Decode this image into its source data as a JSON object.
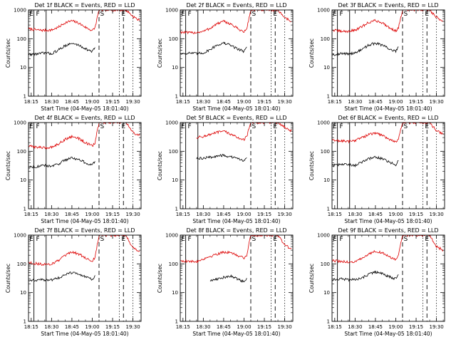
{
  "figure": {
    "xlabel": "Start Time (04-May-05 18:01:40)",
    "ylabel": "Counts/sec",
    "x_tick_labels": [
      "18:15",
      "18:30",
      "18:45",
      "19:00",
      "19:15",
      "19:30"
    ],
    "y_tick_labels": [
      "1",
      "10",
      "100",
      "1000"
    ],
    "markers": [
      "E",
      "F",
      "S",
      "E"
    ],
    "colors": {
      "events": "#000000",
      "lld": "#dd0000",
      "axes": "#000000",
      "background": "#ffffff"
    }
  },
  "chart_data": [
    {
      "type": "line",
      "title": "Det 1f BLACK = Events, RED = LLD",
      "ylim": [
        1,
        1000
      ],
      "yscale": "log",
      "ylabel": "Counts/sec",
      "xlabel": "Start Time (04-May-05 18:01:40)",
      "x": [
        "18:13",
        "18:20",
        "18:25",
        "18:30",
        "18:35",
        "18:40",
        "18:45",
        "18:50",
        "18:55",
        "19:00",
        "19:02",
        "19:05",
        "19:10",
        "19:15",
        "19:20",
        "19:25",
        "19:30",
        "19:35"
      ],
      "series": [
        {
          "name": "LLD",
          "color": "#dd0000",
          "values": [
            220,
            200,
            195,
            200,
            250,
            360,
            420,
            350,
            250,
            190,
            240,
            1000,
            1000,
            1000,
            1000,
            1000,
            600,
            420
          ]
        },
        {
          "name": "Events",
          "color": "#000000",
          "values": [
            28,
            30,
            32,
            30,
            40,
            58,
            68,
            60,
            45,
            35,
            50,
            null,
            null,
            null,
            null,
            null,
            null,
            null
          ]
        }
      ]
    },
    {
      "type": "line",
      "title": "Det 2f BLACK = Events, RED = LLD",
      "ylim": [
        1,
        1000
      ],
      "yscale": "log",
      "ylabel": "Counts/sec",
      "xlabel": "Start Time (04-May-05 18:01:40)",
      "x": [
        "18:13",
        "18:20",
        "18:25",
        "18:30",
        "18:35",
        "18:40",
        "18:45",
        "18:50",
        "18:55",
        "19:00",
        "19:02",
        "19:05",
        "19:10",
        "19:15",
        "19:20",
        "19:25",
        "19:30",
        "19:35"
      ],
      "series": [
        {
          "name": "LLD",
          "color": "#dd0000",
          "values": [
            170,
            160,
            165,
            180,
            230,
            330,
            400,
            330,
            230,
            170,
            220,
            1000,
            1000,
            1000,
            1000,
            1000,
            550,
            400
          ]
        },
        {
          "name": "Events",
          "color": "#000000",
          "values": [
            30,
            32,
            30,
            32,
            42,
            60,
            70,
            60,
            45,
            36,
            52,
            null,
            null,
            null,
            null,
            null,
            null,
            null
          ]
        }
      ]
    },
    {
      "type": "line",
      "title": "Det 3f BLACK = Events, RED = LLD",
      "ylim": [
        1,
        1000
      ],
      "yscale": "log",
      "ylabel": "Counts/sec",
      "xlabel": "Start Time (04-May-05 18:01:40)",
      "x": [
        "18:13",
        "18:20",
        "18:25",
        "18:30",
        "18:35",
        "18:40",
        "18:45",
        "18:50",
        "18:55",
        "19:00",
        "19:02",
        "19:05",
        "19:10",
        "19:15",
        "19:20",
        "19:25",
        "19:30",
        "19:35"
      ],
      "series": [
        {
          "name": "LLD",
          "color": "#dd0000",
          "values": [
            200,
            180,
            180,
            200,
            260,
            370,
            430,
            360,
            250,
            185,
            240,
            1000,
            1000,
            1000,
            1000,
            1000,
            560,
            400
          ]
        },
        {
          "name": "Events",
          "color": "#000000",
          "values": [
            28,
            30,
            30,
            32,
            42,
            60,
            70,
            60,
            45,
            36,
            52,
            null,
            null,
            null,
            null,
            null,
            null,
            null
          ]
        }
      ]
    },
    {
      "type": "line",
      "title": "Det 4f BLACK = Events, RED = LLD",
      "ylim": [
        1,
        1000
      ],
      "yscale": "log",
      "ylabel": "Counts/sec",
      "xlabel": "Start Time (04-May-05 18:01:40)",
      "x": [
        "18:13",
        "18:20",
        "18:25",
        "18:30",
        "18:35",
        "18:40",
        "18:45",
        "18:50",
        "18:55",
        "19:00",
        "19:02",
        "19:05",
        "19:10",
        "19:15",
        "19:20",
        "19:25",
        "19:30",
        "19:35"
      ],
      "series": [
        {
          "name": "LLD",
          "color": "#dd0000",
          "values": [
            150,
            140,
            130,
            140,
            180,
            260,
            330,
            280,
            200,
            150,
            200,
            1000,
            1000,
            1000,
            1000,
            1000,
            450,
            350
          ]
        },
        {
          "name": "Events",
          "color": "#000000",
          "values": [
            28,
            30,
            32,
            30,
            36,
            50,
            60,
            52,
            40,
            32,
            45,
            null,
            null,
            null,
            null,
            null,
            null,
            null
          ]
        }
      ]
    },
    {
      "type": "line",
      "title": "Det 5f BLACK = Events, RED = LLD",
      "ylim": [
        1,
        1000
      ],
      "yscale": "log",
      "ylabel": "Counts/sec",
      "xlabel": "Start Time (04-May-05 18:01:40)",
      "x": [
        "18:13",
        "18:20",
        "18:25",
        "18:30",
        "18:35",
        "18:40",
        "18:45",
        "18:50",
        "18:55",
        "19:00",
        "19:02",
        "19:05",
        "19:10",
        "19:15",
        "19:20",
        "19:25",
        "19:30",
        "19:35"
      ],
      "series": [
        {
          "name": "LLD",
          "color": "#dd0000",
          "values": [
            null,
            null,
            300,
            330,
            380,
            450,
            500,
            400,
            300,
            260,
            320,
            1000,
            1000,
            1000,
            1000,
            1000,
            700,
            500
          ]
        },
        {
          "name": "Events",
          "color": "#000000",
          "values": [
            null,
            null,
            55,
            58,
            62,
            68,
            72,
            64,
            55,
            48,
            60,
            null,
            null,
            null,
            null,
            null,
            null,
            null
          ]
        }
      ]
    },
    {
      "type": "line",
      "title": "Det 6f BLACK = Events, RED = LLD",
      "ylim": [
        1,
        1000
      ],
      "yscale": "log",
      "ylabel": "Counts/sec",
      "xlabel": "Start Time (04-May-05 18:01:40)",
      "x": [
        "18:13",
        "18:20",
        "18:25",
        "18:30",
        "18:35",
        "18:40",
        "18:45",
        "18:50",
        "18:55",
        "19:00",
        "19:02",
        "19:05",
        "19:10",
        "19:15",
        "19:20",
        "19:25",
        "19:30",
        "19:35"
      ],
      "series": [
        {
          "name": "LLD",
          "color": "#dd0000",
          "values": [
            240,
            230,
            220,
            240,
            300,
            380,
            430,
            360,
            270,
            210,
            260,
            1000,
            1000,
            1000,
            1000,
            1000,
            520,
            380
          ]
        },
        {
          "name": "Events",
          "color": "#000000",
          "values": [
            32,
            35,
            34,
            32,
            42,
            55,
            62,
            55,
            42,
            34,
            48,
            null,
            null,
            null,
            null,
            null,
            null,
            null
          ]
        }
      ]
    },
    {
      "type": "line",
      "title": "Det 7f BLACK = Events, RED = LLD",
      "ylim": [
        1,
        1000
      ],
      "yscale": "log",
      "ylabel": "Counts/sec",
      "xlabel": "Start Time (04-May-05 18:01:40)",
      "x": [
        "18:13",
        "18:20",
        "18:25",
        "18:30",
        "18:35",
        "18:40",
        "18:45",
        "18:50",
        "18:55",
        "19:00",
        "19:02",
        "19:05",
        "19:10",
        "19:15",
        "19:20",
        "19:25",
        "19:30",
        "19:35"
      ],
      "series": [
        {
          "name": "LLD",
          "color": "#dd0000",
          "values": [
            110,
            100,
            95,
            100,
            130,
            190,
            260,
            220,
            160,
            120,
            170,
            1000,
            1000,
            1000,
            1000,
            1000,
            350,
            280
          ]
        },
        {
          "name": "Events",
          "color": "#000000",
          "values": [
            26,
            28,
            27,
            28,
            32,
            42,
            50,
            44,
            35,
            28,
            40,
            null,
            null,
            null,
            null,
            null,
            null,
            null
          ]
        }
      ]
    },
    {
      "type": "line",
      "title": "Det 8f BLACK = Events, RED = LLD",
      "ylim": [
        1,
        1000
      ],
      "yscale": "log",
      "ylabel": "Counts/sec",
      "xlabel": "Start Time (04-May-05 18:01:40)",
      "x": [
        "18:13",
        "18:20",
        "18:25",
        "18:30",
        "18:35",
        "18:40",
        "18:45",
        "18:50",
        "18:55",
        "19:00",
        "19:02",
        "19:05",
        "19:10",
        "19:15",
        "19:20",
        "19:25",
        "19:30",
        "19:35"
      ],
      "series": [
        {
          "name": "LLD",
          "color": "#dd0000",
          "values": [
            130,
            120,
            120,
            150,
            180,
            220,
            260,
            240,
            200,
            160,
            200,
            1000,
            1000,
            1000,
            1000,
            1000,
            450,
            330
          ]
        },
        {
          "name": "Events",
          "color": "#000000",
          "values": [
            null,
            null,
            null,
            null,
            26,
            30,
            34,
            38,
            30,
            24,
            32,
            null,
            null,
            null,
            null,
            null,
            null,
            null
          ]
        }
      ]
    },
    {
      "type": "line",
      "title": "Det 9f BLACK = Events, RED = LLD",
      "ylim": [
        1,
        1000
      ],
      "yscale": "log",
      "ylabel": "Counts/sec",
      "xlabel": "Start Time (04-May-05 18:01:40)",
      "x": [
        "18:13",
        "18:20",
        "18:25",
        "18:30",
        "18:35",
        "18:40",
        "18:45",
        "18:50",
        "18:55",
        "19:00",
        "19:02",
        "19:05",
        "19:10",
        "19:15",
        "19:20",
        "19:25",
        "19:30",
        "19:35"
      ],
      "series": [
        {
          "name": "LLD",
          "color": "#dd0000",
          "values": [
            130,
            120,
            115,
            120,
            150,
            220,
            280,
            240,
            180,
            140,
            190,
            1000,
            1000,
            1000,
            1000,
            1000,
            400,
            300
          ]
        },
        {
          "name": "Events",
          "color": "#000000",
          "values": [
            28,
            30,
            28,
            28,
            32,
            44,
            52,
            46,
            36,
            30,
            42,
            null,
            null,
            null,
            null,
            null,
            null,
            null
          ]
        }
      ]
    }
  ]
}
